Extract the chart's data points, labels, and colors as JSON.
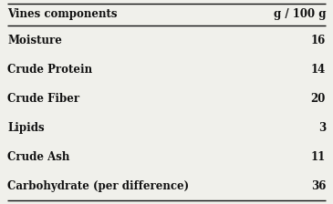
{
  "header_left": "Vines components",
  "header_right": "g / 100 g",
  "rows": [
    [
      "Moisture",
      "16"
    ],
    [
      "Crude Protein",
      "14"
    ],
    [
      "Crude Fiber",
      "20"
    ],
    [
      "Lipids",
      "3"
    ],
    [
      "Crude Ash",
      "11"
    ],
    [
      "Carbohydrate (per difference)",
      "36"
    ]
  ],
  "bg_color": "#f0f0eb",
  "text_color": "#111111",
  "font_size": 8.5,
  "header_font_size": 8.5,
  "fig_width": 3.65,
  "fig_height": 2.24,
  "dpi": 100
}
